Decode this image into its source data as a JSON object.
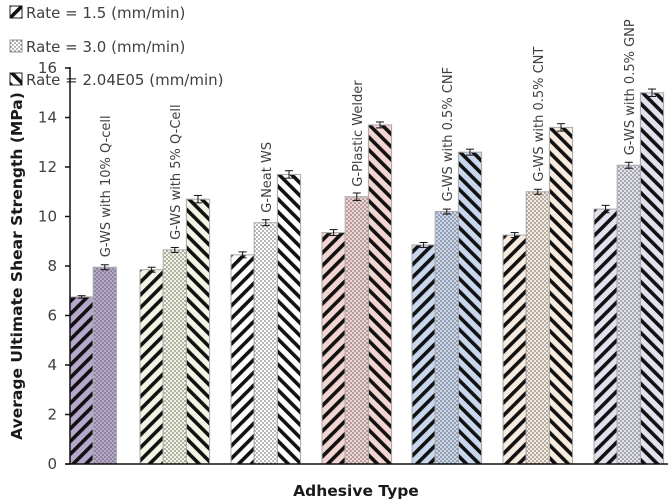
{
  "chart_data": {
    "type": "bar",
    "title": "",
    "xlabel": "Adhesive Type",
    "ylabel": "Average Ultimate Shear Strength (MPa)",
    "ylim": [
      0,
      16
    ],
    "yticks": [
      0,
      2,
      4,
      6,
      8,
      10,
      12,
      14,
      16
    ],
    "grid": false,
    "legend_position": "top-left",
    "categories": [
      "G-WS with 10% Q-cell",
      "G-WS with 5% Q-Cell",
      "G-Neat WS",
      "G-Plastic Welder",
      "G-WS with 0.5% CNF",
      "G-WS with 0.5% CNT",
      "G-WS with 0.5% GNP"
    ],
    "category_colors": [
      "#b6a8cc",
      "#f2f5e4",
      "#ffffff",
      "#f2d4d2",
      "#c9d7ee",
      "#f7ebdf",
      "#e2e2ee"
    ],
    "series": [
      {
        "name": "Rate = 1.5 (mm/min)",
        "pattern": "back-diagonal-stripes",
        "values": [
          6.75,
          7.85,
          8.45,
          9.35,
          8.85,
          9.25,
          10.3
        ],
        "errors": [
          0.05,
          0.1,
          0.12,
          0.12,
          0.1,
          0.1,
          0.15
        ]
      },
      {
        "name": "Rate = 3.0 (mm/min)",
        "pattern": "dots",
        "values": [
          7.95,
          8.65,
          9.75,
          10.8,
          10.2,
          11.0,
          12.07
        ],
        "errors": [
          0.1,
          0.1,
          0.12,
          0.15,
          0.1,
          0.1,
          0.12
        ]
      },
      {
        "name": "Rate = 2.04E05 (mm/min)",
        "pattern": "forward-diagonal-stripes",
        "values": [
          null,
          10.7,
          11.7,
          13.7,
          12.6,
          13.6,
          15.0
        ],
        "errors": [
          null,
          0.15,
          0.15,
          0.12,
          0.12,
          0.15,
          0.15
        ]
      }
    ]
  }
}
